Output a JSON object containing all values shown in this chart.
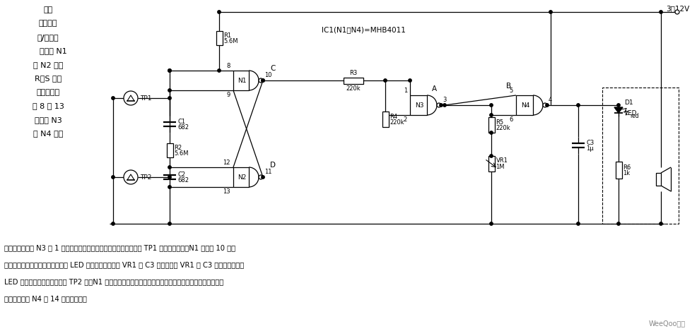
{
  "bg_color": "#ffffff",
  "title_lines": [
    "触摸",
    "式单片闪",
    "光/蜂鸣器",
    "    该电路 N1",
    "和 N2 构成",
    "R－S 触发",
    "器，触发端",
    "为 8 和 13",
    "脚；由 N3",
    "和 N4 组成"
  ],
  "bottom_text_lines": [
    "受控振荡，只有 N3 在 1 脚处于高电平时，振荡器才工作。当指触板 TP1 被手指桥接时，N1 输出端 10 脚转",
    "换为高电平，振荡器就振荡，此时 LED 闪光，闪光频率由 VR1 和 C3 决定。改变 VR1 和 C3 的值，就可改变",
    "LED 的闪光频率。当手指桥接 TP2 时，N1 输出低电平，振荡器就停止工作。若要外加蜂鸣器，可用压电元",
    "件再把它接到 N4 的 14 脚和接地端。"
  ],
  "watermark": "WeeQoo维库",
  "supply_label": "3～12V",
  "ic_label": "IC1(N1～N4)=MHB4011"
}
